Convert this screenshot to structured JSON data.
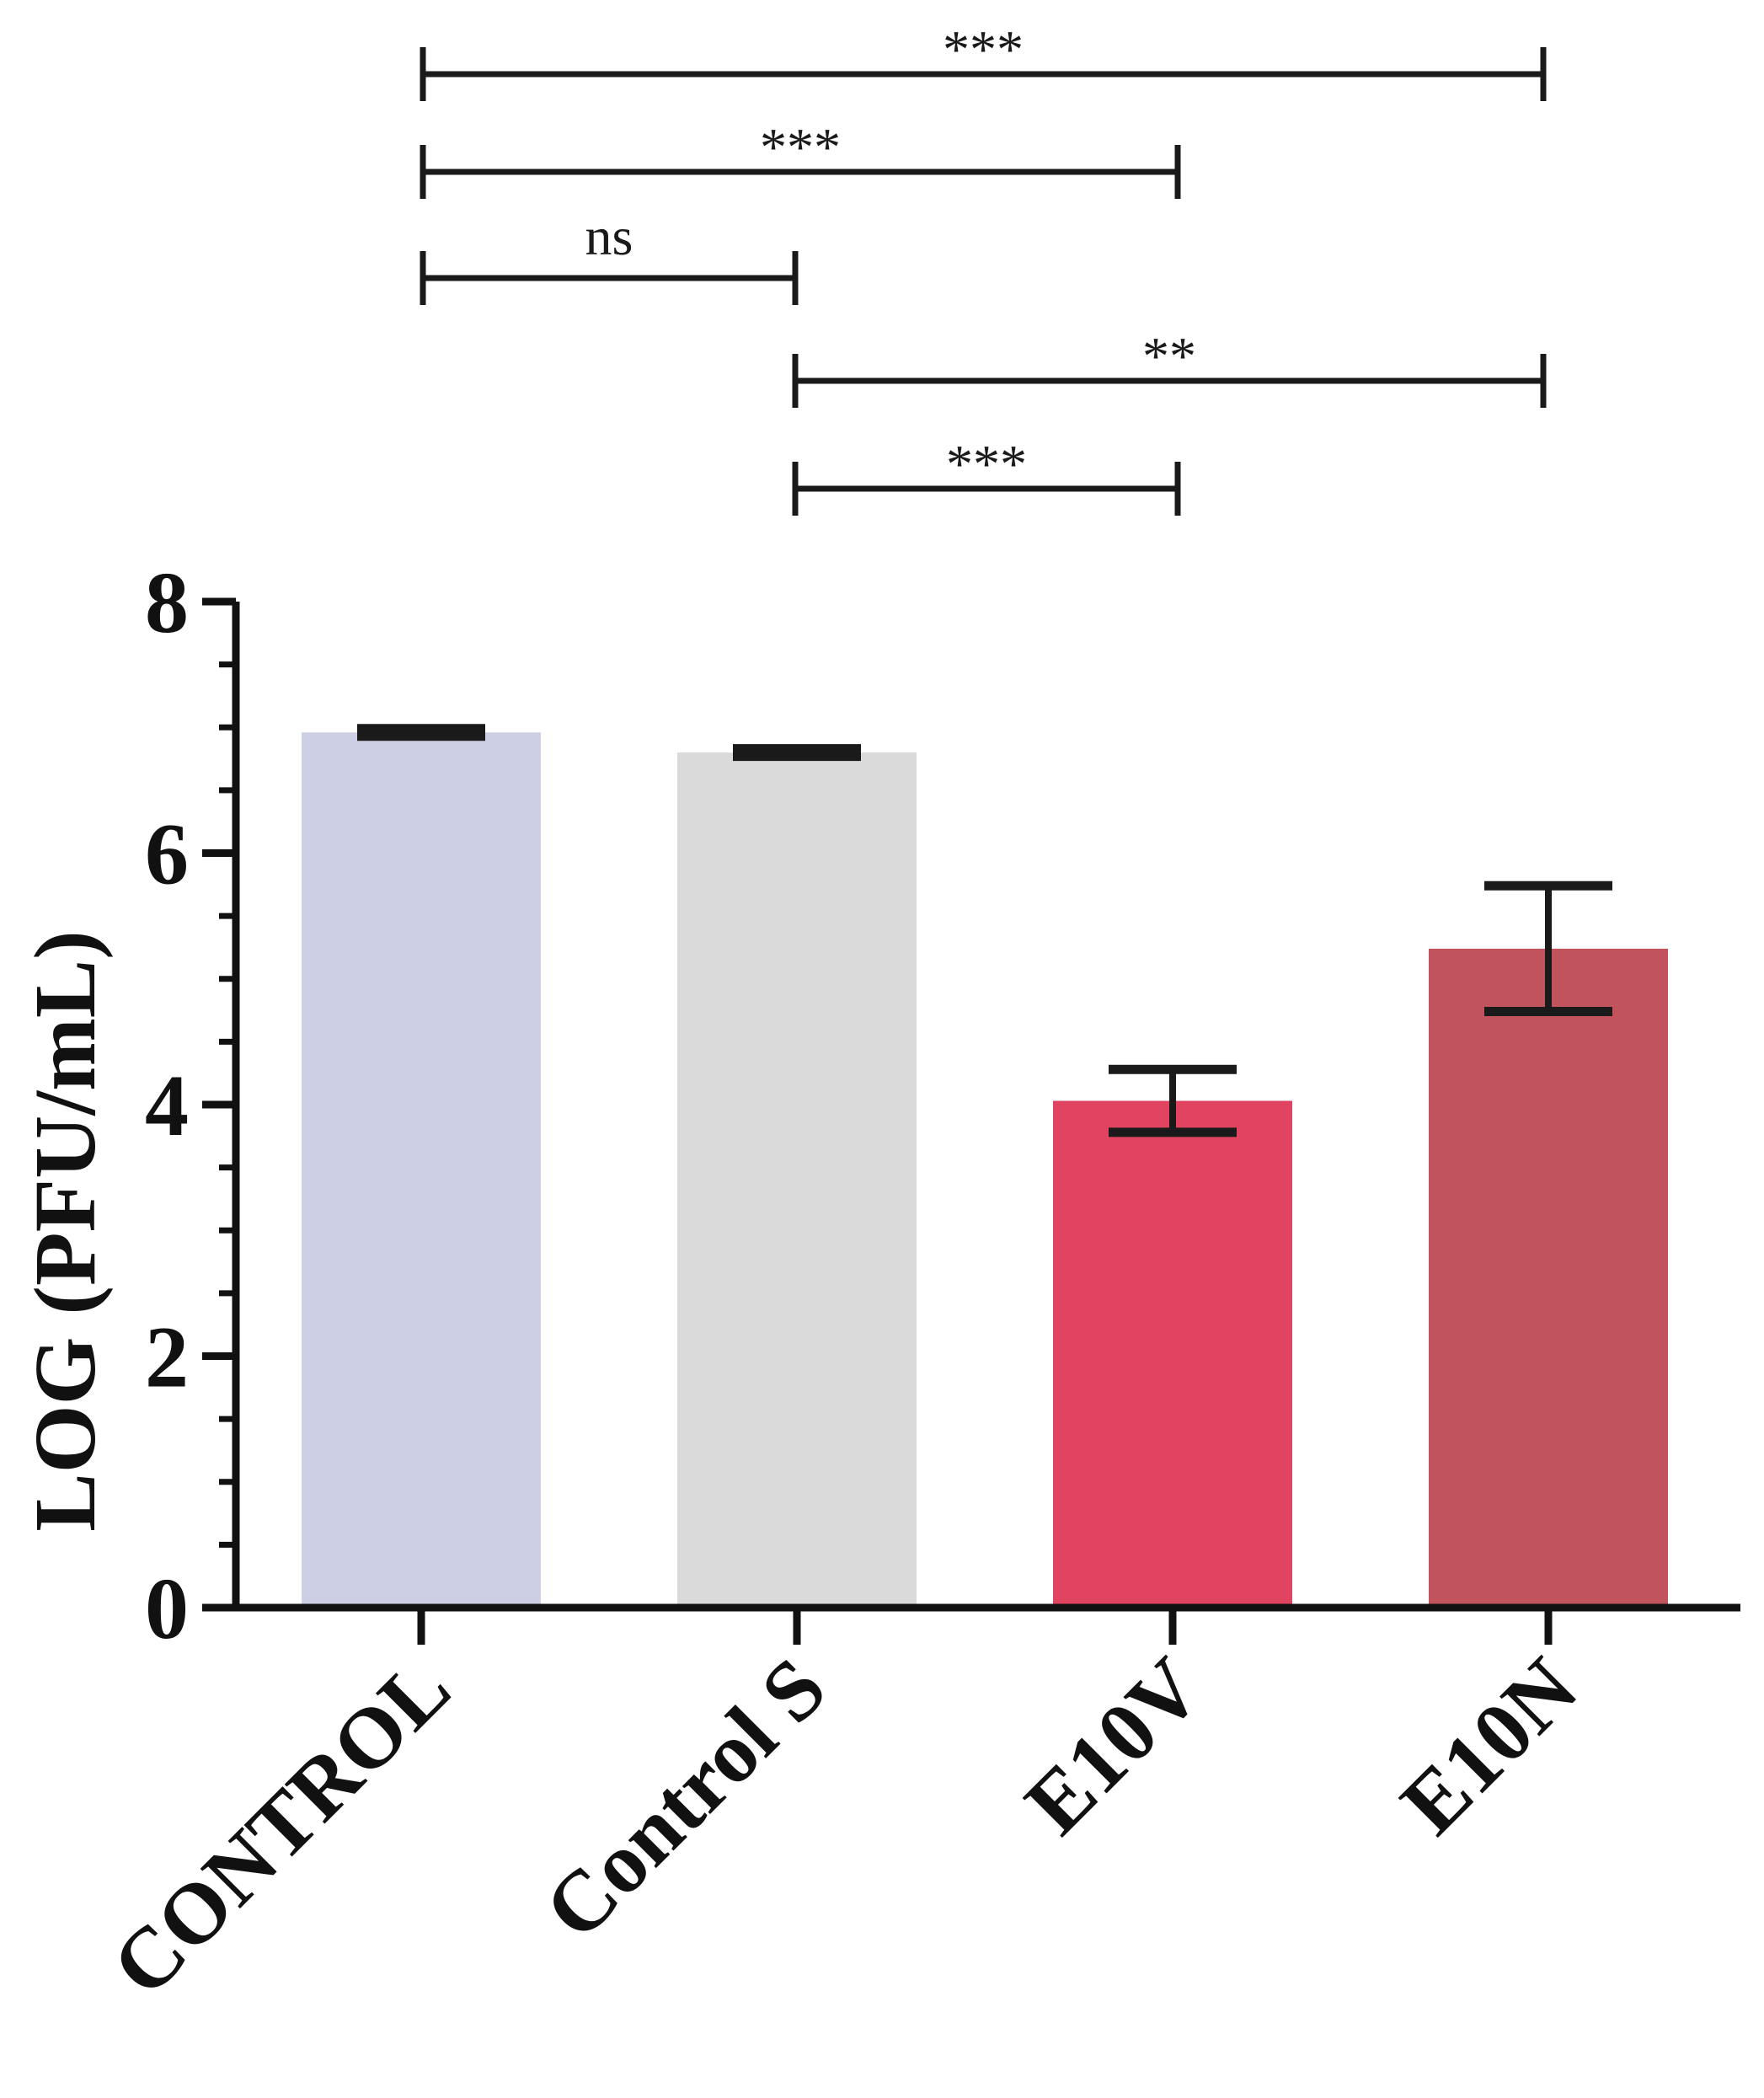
{
  "chart_data": {
    "type": "bar",
    "title": "",
    "xlabel": "",
    "ylabel": "LOG (PFU/mL)",
    "ylim": [
      0,
      8
    ],
    "yticks": [
      0,
      2,
      4,
      6,
      8
    ],
    "ytick_labels": [
      "0",
      "2",
      "4",
      "6",
      "8"
    ],
    "minor_tick_step": 0.5,
    "grid": false,
    "legend": "none",
    "categories": [
      "CONTROL",
      "Control S",
      "E10V",
      "E10N"
    ],
    "values": [
      6.96,
      6.8,
      4.03,
      5.24
    ],
    "errors": [
      0.03,
      0.03,
      0.25,
      0.5
    ],
    "colors": [
      "#cdd0e4",
      "#dadada",
      "#e14460",
      "#c1535d"
    ],
    "significance": [
      {
        "from": 0,
        "to": 3,
        "label": "***"
      },
      {
        "from": 0,
        "to": 2,
        "label": "***"
      },
      {
        "from": 0,
        "to": 1,
        "label": "ns"
      },
      {
        "from": 1,
        "to": 3,
        "label": "**"
      },
      {
        "from": 1,
        "to": 2,
        "label": "***"
      }
    ]
  }
}
